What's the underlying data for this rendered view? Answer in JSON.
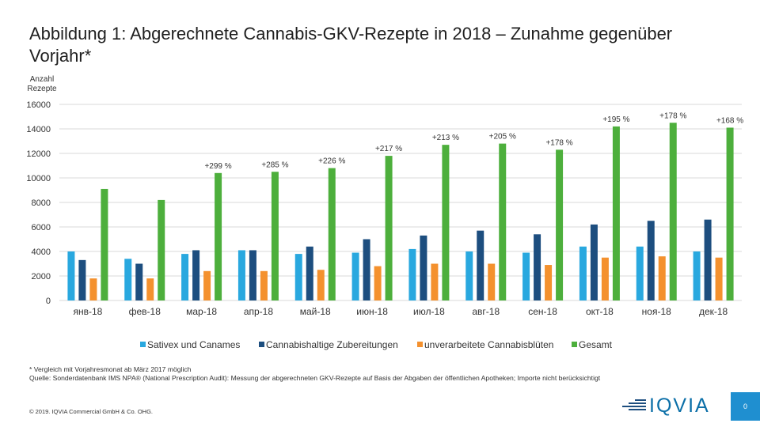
{
  "slide": {
    "title": "Abbildung 1: Abgerechnete Cannabis-GKV-Rezepte in 2018 – Zunahme gegenüber Vorjahr*",
    "footnote_1": "* Vergleich mit Vorjahresmonat ab März 2017 möglich",
    "footnote_2": "Quelle: Sonderdatenbank IMS NPA® (National Prescription Audit): Messung der abgerechneten GKV-Rezepte auf Basis der Abgaben der öffentlichen Apotheken; Importe nicht berücksichtigt",
    "copyright": "© 2019. IQVIA Commercial GmbH & Co. OHG.",
    "logo_text": "IQVIA",
    "page_number": "0"
  },
  "colors": {
    "sativex": "#29a8df",
    "cannabishaltige": "#1d4e7f",
    "unverarbeitete": "#f4912e",
    "gesamt": "#4daf3c",
    "grid": "#d9d9d9"
  },
  "chart_data": {
    "type": "bar",
    "title": "Abbildung 1: Abgerechnete Cannabis-GKV-Rezepte in 2018 – Zunahme gegenüber Vorjahr*",
    "ylabel": "Anzahl Rezepte",
    "xlabel": "",
    "ylim": [
      0,
      16000
    ],
    "yticks": [
      0,
      2000,
      4000,
      6000,
      8000,
      10000,
      12000,
      14000,
      16000
    ],
    "grid": true,
    "legend": "bottom",
    "categories": [
      "янв-18",
      "фев-18",
      "мар-18",
      "апр-18",
      "май-18",
      "июн-18",
      "июл-18",
      "авг-18",
      "сен-18",
      "окт-18",
      "ноя-18",
      "дек-18"
    ],
    "series": [
      {
        "name": "Sativex und Canames",
        "color_key": "sativex",
        "values": [
          4000,
          3400,
          3800,
          4100,
          3800,
          3900,
          4200,
          4000,
          3900,
          4400,
          4400,
          4000
        ]
      },
      {
        "name": "Cannabishaltige Zubereitungen",
        "color_key": "cannabishaltige",
        "values": [
          3300,
          3000,
          4100,
          4100,
          4400,
          5000,
          5300,
          5700,
          5400,
          6200,
          6500,
          6600
        ]
      },
      {
        "name": "unverarbeitete Cannabisblüten",
        "color_key": "unverarbeitete",
        "values": [
          1800,
          1800,
          2400,
          2400,
          2500,
          2800,
          3000,
          3000,
          2900,
          3500,
          3600,
          3500
        ]
      },
      {
        "name": "Gesamt",
        "color_key": "gesamt",
        "values": [
          9100,
          8200,
          10400,
          10500,
          10800,
          11800,
          12700,
          12800,
          12300,
          14200,
          14500,
          14100
        ]
      }
    ],
    "annotations": [
      "",
      "",
      "+299 %",
      "+285 %",
      "+226 %",
      "+217 %",
      "+213 %",
      "+205 %",
      "+178 %",
      "+195 %",
      "+178 %",
      "+168 %"
    ]
  }
}
